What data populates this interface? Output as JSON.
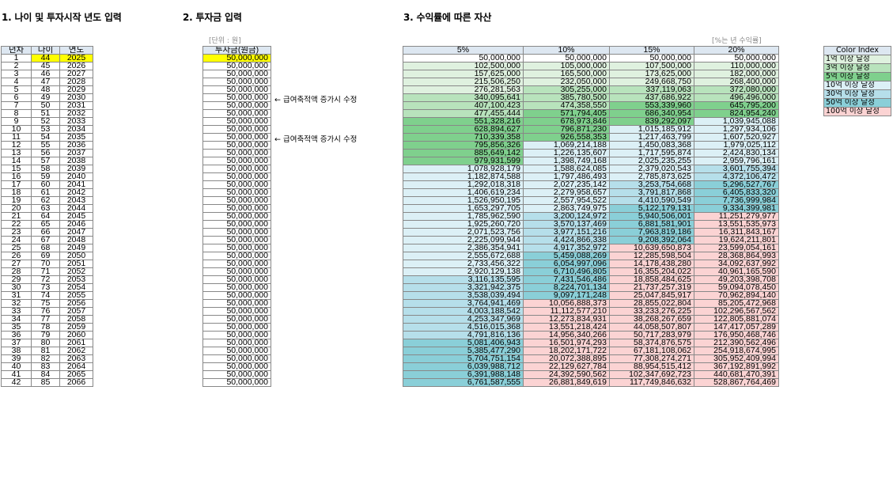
{
  "titles": {
    "t1": "1. 나이 및 투자시작 년도 입력",
    "t2": "2. 투자금 입력",
    "t3": "3. 수익률에 따른 자산"
  },
  "unit_note": "[단위 : 원]",
  "rate_note": "[%는 년 수익률]",
  "headers": {
    "year_index": "년차",
    "age": "나이",
    "year": "연도",
    "invest": "투자금(원금)",
    "r5": "5%",
    "r10": "10%",
    "r15": "15%",
    "r20": "20%"
  },
  "notes": [
    {
      "row": 6,
      "text": "← 급여축적액 증가시 수정"
    },
    {
      "row": 11,
      "text": "← 급여축적액 증가시 수정"
    }
  ],
  "colors": {
    "input_yellow": "#ffff00",
    "header_blue": "#dde7f1",
    "lvl1": "#dff1df",
    "lvl3": "#b8e3bc",
    "lvl5": "#7fd08d",
    "lvl10": "#dcf0f6",
    "lvl30": "#b6dfea",
    "lvl50": "#8acfd8",
    "lvl100": "#fbd3d3"
  },
  "legend": {
    "title": "Color Index",
    "items": [
      {
        "label": "1억 이상 달성",
        "color": "#dff1df"
      },
      {
        "label": "3억 이상 달성",
        "color": "#b8e3bc"
      },
      {
        "label": "5억 이상 달성",
        "color": "#7fd08d"
      },
      {
        "label": "10억 이상 달성",
        "color": "#dcf0f6"
      },
      {
        "label": "30억 이상 달성",
        "color": "#b6dfea"
      },
      {
        "label": "50억 이상 달성",
        "color": "#8acfd8"
      },
      {
        "label": "100억 이상 달성",
        "color": "#fbd3d3"
      }
    ]
  },
  "rows": [
    {
      "n": "1",
      "age": "44",
      "year": "2025",
      "inv": "50,000,000",
      "v5": "50,000,000",
      "v10": "50,000,000",
      "v15": "50,000,000",
      "v20": "50,000,000"
    },
    {
      "n": "2",
      "age": "45",
      "year": "2026",
      "inv": "50,000,000",
      "v5": "102,500,000",
      "v10": "105,000,000",
      "v15": "107,500,000",
      "v20": "110,000,000"
    },
    {
      "n": "3",
      "age": "46",
      "year": "2027",
      "inv": "50,000,000",
      "v5": "157,625,000",
      "v10": "165,500,000",
      "v15": "173,625,000",
      "v20": "182,000,000"
    },
    {
      "n": "4",
      "age": "47",
      "year": "2028",
      "inv": "50,000,000",
      "v5": "215,506,250",
      "v10": "232,050,000",
      "v15": "249,668,750",
      "v20": "268,400,000"
    },
    {
      "n": "5",
      "age": "48",
      "year": "2029",
      "inv": "50,000,000",
      "v5": "276,281,563",
      "v10": "305,255,000",
      "v15": "337,119,063",
      "v20": "372,080,000"
    },
    {
      "n": "6",
      "age": "49",
      "year": "2030",
      "inv": "50,000,000",
      "v5": "340,095,641",
      "v10": "385,780,500",
      "v15": "437,686,922",
      "v20": "496,496,000"
    },
    {
      "n": "7",
      "age": "50",
      "year": "2031",
      "inv": "50,000,000",
      "v5": "407,100,423",
      "v10": "474,358,550",
      "v15": "553,339,960",
      "v20": "645,795,200"
    },
    {
      "n": "8",
      "age": "51",
      "year": "2032",
      "inv": "50,000,000",
      "v5": "477,455,444",
      "v10": "571,794,405",
      "v15": "686,340,954",
      "v20": "824,954,240"
    },
    {
      "n": "9",
      "age": "52",
      "year": "2033",
      "inv": "50,000,000",
      "v5": "551,328,216",
      "v10": "678,973,846",
      "v15": "839,292,097",
      "v20": "1,039,945,088"
    },
    {
      "n": "10",
      "age": "53",
      "year": "2034",
      "inv": "50,000,000",
      "v5": "628,894,627",
      "v10": "796,871,230",
      "v15": "1,015,185,912",
      "v20": "1,297,934,106"
    },
    {
      "n": "11",
      "age": "54",
      "year": "2035",
      "inv": "50,000,000",
      "v5": "710,339,358",
      "v10": "926,558,353",
      "v15": "1,217,463,799",
      "v20": "1,607,520,927"
    },
    {
      "n": "12",
      "age": "55",
      "year": "2036",
      "inv": "50,000,000",
      "v5": "795,856,326",
      "v10": "1,069,214,188",
      "v15": "1,450,083,368",
      "v20": "1,979,025,112"
    },
    {
      "n": "13",
      "age": "56",
      "year": "2037",
      "inv": "50,000,000",
      "v5": "885,649,142",
      "v10": "1,226,135,607",
      "v15": "1,717,595,874",
      "v20": "2,424,830,134"
    },
    {
      "n": "14",
      "age": "57",
      "year": "2038",
      "inv": "50,000,000",
      "v5": "979,931,599",
      "v10": "1,398,749,168",
      "v15": "2,025,235,255",
      "v20": "2,959,796,161"
    },
    {
      "n": "15",
      "age": "58",
      "year": "2039",
      "inv": "50,000,000",
      "v5": "1,078,928,179",
      "v10": "1,588,624,085",
      "v15": "2,379,020,543",
      "v20": "3,601,755,394"
    },
    {
      "n": "16",
      "age": "59",
      "year": "2040",
      "inv": "50,000,000",
      "v5": "1,182,874,588",
      "v10": "1,797,486,493",
      "v15": "2,785,873,625",
      "v20": "4,372,106,472"
    },
    {
      "n": "17",
      "age": "60",
      "year": "2041",
      "inv": "50,000,000",
      "v5": "1,292,018,318",
      "v10": "2,027,235,142",
      "v15": "3,253,754,668",
      "v20": "5,296,527,767"
    },
    {
      "n": "18",
      "age": "61",
      "year": "2042",
      "inv": "50,000,000",
      "v5": "1,406,619,234",
      "v10": "2,279,958,657",
      "v15": "3,791,817,868",
      "v20": "6,405,833,320"
    },
    {
      "n": "19",
      "age": "62",
      "year": "2043",
      "inv": "50,000,000",
      "v5": "1,526,950,195",
      "v10": "2,557,954,522",
      "v15": "4,410,590,549",
      "v20": "7,736,999,984"
    },
    {
      "n": "20",
      "age": "63",
      "year": "2044",
      "inv": "50,000,000",
      "v5": "1,653,297,705",
      "v10": "2,863,749,975",
      "v15": "5,122,179,131",
      "v20": "9,334,399,981"
    },
    {
      "n": "21",
      "age": "64",
      "year": "2045",
      "inv": "50,000,000",
      "v5": "1,785,962,590",
      "v10": "3,200,124,972",
      "v15": "5,940,506,001",
      "v20": "11,251,279,977"
    },
    {
      "n": "22",
      "age": "65",
      "year": "2046",
      "inv": "50,000,000",
      "v5": "1,925,260,720",
      "v10": "3,570,137,469",
      "v15": "6,881,581,901",
      "v20": "13,551,535,973"
    },
    {
      "n": "23",
      "age": "66",
      "year": "2047",
      "inv": "50,000,000",
      "v5": "2,071,523,756",
      "v10": "3,977,151,216",
      "v15": "7,963,819,186",
      "v20": "16,311,843,167"
    },
    {
      "n": "24",
      "age": "67",
      "year": "2048",
      "inv": "50,000,000",
      "v5": "2,225,099,944",
      "v10": "4,424,866,338",
      "v15": "9,208,392,064",
      "v20": "19,624,211,801"
    },
    {
      "n": "25",
      "age": "68",
      "year": "2049",
      "inv": "50,000,000",
      "v5": "2,386,354,941",
      "v10": "4,917,352,972",
      "v15": "10,639,650,873",
      "v20": "23,599,054,161"
    },
    {
      "n": "26",
      "age": "69",
      "year": "2050",
      "inv": "50,000,000",
      "v5": "2,555,672,688",
      "v10": "5,459,088,269",
      "v15": "12,285,598,504",
      "v20": "28,368,864,993"
    },
    {
      "n": "27",
      "age": "70",
      "year": "2051",
      "inv": "50,000,000",
      "v5": "2,733,456,322",
      "v10": "6,054,997,096",
      "v15": "14,178,438,280",
      "v20": "34,092,637,992"
    },
    {
      "n": "28",
      "age": "71",
      "year": "2052",
      "inv": "50,000,000",
      "v5": "2,920,129,138",
      "v10": "6,710,496,805",
      "v15": "16,355,204,022",
      "v20": "40,961,165,590"
    },
    {
      "n": "29",
      "age": "72",
      "year": "2053",
      "inv": "50,000,000",
      "v5": "3,116,135,595",
      "v10": "7,431,546,486",
      "v15": "18,858,484,625",
      "v20": "49,203,398,708"
    },
    {
      "n": "30",
      "age": "73",
      "year": "2054",
      "inv": "50,000,000",
      "v5": "3,321,942,375",
      "v10": "8,224,701,134",
      "v15": "21,737,257,319",
      "v20": "59,094,078,450"
    },
    {
      "n": "31",
      "age": "74",
      "year": "2055",
      "inv": "50,000,000",
      "v5": "3,538,039,494",
      "v10": "9,097,171,248",
      "v15": "25,047,845,917",
      "v20": "70,962,894,140"
    },
    {
      "n": "32",
      "age": "75",
      "year": "2056",
      "inv": "50,000,000",
      "v5": "3,764,941,469",
      "v10": "10,056,888,373",
      "v15": "28,855,022,804",
      "v20": "85,205,472,968"
    },
    {
      "n": "33",
      "age": "76",
      "year": "2057",
      "inv": "50,000,000",
      "v5": "4,003,188,542",
      "v10": "11,112,577,210",
      "v15": "33,233,276,225",
      "v20": "102,296,567,562"
    },
    {
      "n": "34",
      "age": "77",
      "year": "2058",
      "inv": "50,000,000",
      "v5": "4,253,347,969",
      "v10": "12,273,834,931",
      "v15": "38,268,267,659",
      "v20": "122,805,881,074"
    },
    {
      "n": "35",
      "age": "78",
      "year": "2059",
      "inv": "50,000,000",
      "v5": "4,516,015,368",
      "v10": "13,551,218,424",
      "v15": "44,058,507,807",
      "v20": "147,417,057,289"
    },
    {
      "n": "36",
      "age": "79",
      "year": "2060",
      "inv": "50,000,000",
      "v5": "4,791,816,136",
      "v10": "14,956,340,266",
      "v15": "50,717,283,979",
      "v20": "176,950,468,746"
    },
    {
      "n": "37",
      "age": "80",
      "year": "2061",
      "inv": "50,000,000",
      "v5": "5,081,406,943",
      "v10": "16,501,974,293",
      "v15": "58,374,876,575",
      "v20": "212,390,562,496"
    },
    {
      "n": "38",
      "age": "81",
      "year": "2062",
      "inv": "50,000,000",
      "v5": "5,385,477,290",
      "v10": "18,202,171,722",
      "v15": "67,181,108,062",
      "v20": "254,918,674,995"
    },
    {
      "n": "39",
      "age": "82",
      "year": "2063",
      "inv": "50,000,000",
      "v5": "5,704,751,154",
      "v10": "20,072,388,895",
      "v15": "77,308,274,271",
      "v20": "305,952,409,994"
    },
    {
      "n": "40",
      "age": "83",
      "year": "2064",
      "inv": "50,000,000",
      "v5": "6,039,988,712",
      "v10": "22,129,627,784",
      "v15": "88,954,515,412",
      "v20": "367,192,891,992"
    },
    {
      "n": "41",
      "age": "84",
      "year": "2065",
      "inv": "50,000,000",
      "v5": "6,391,988,148",
      "v10": "24,392,590,562",
      "v15": "102,347,692,723",
      "v20": "440,681,470,391"
    },
    {
      "n": "42",
      "age": "85",
      "year": "2066",
      "inv": "50,000,000",
      "v5": "6,761,587,555",
      "v10": "26,881,849,619",
      "v15": "117,749,846,632",
      "v20": "528,867,764,469"
    }
  ]
}
